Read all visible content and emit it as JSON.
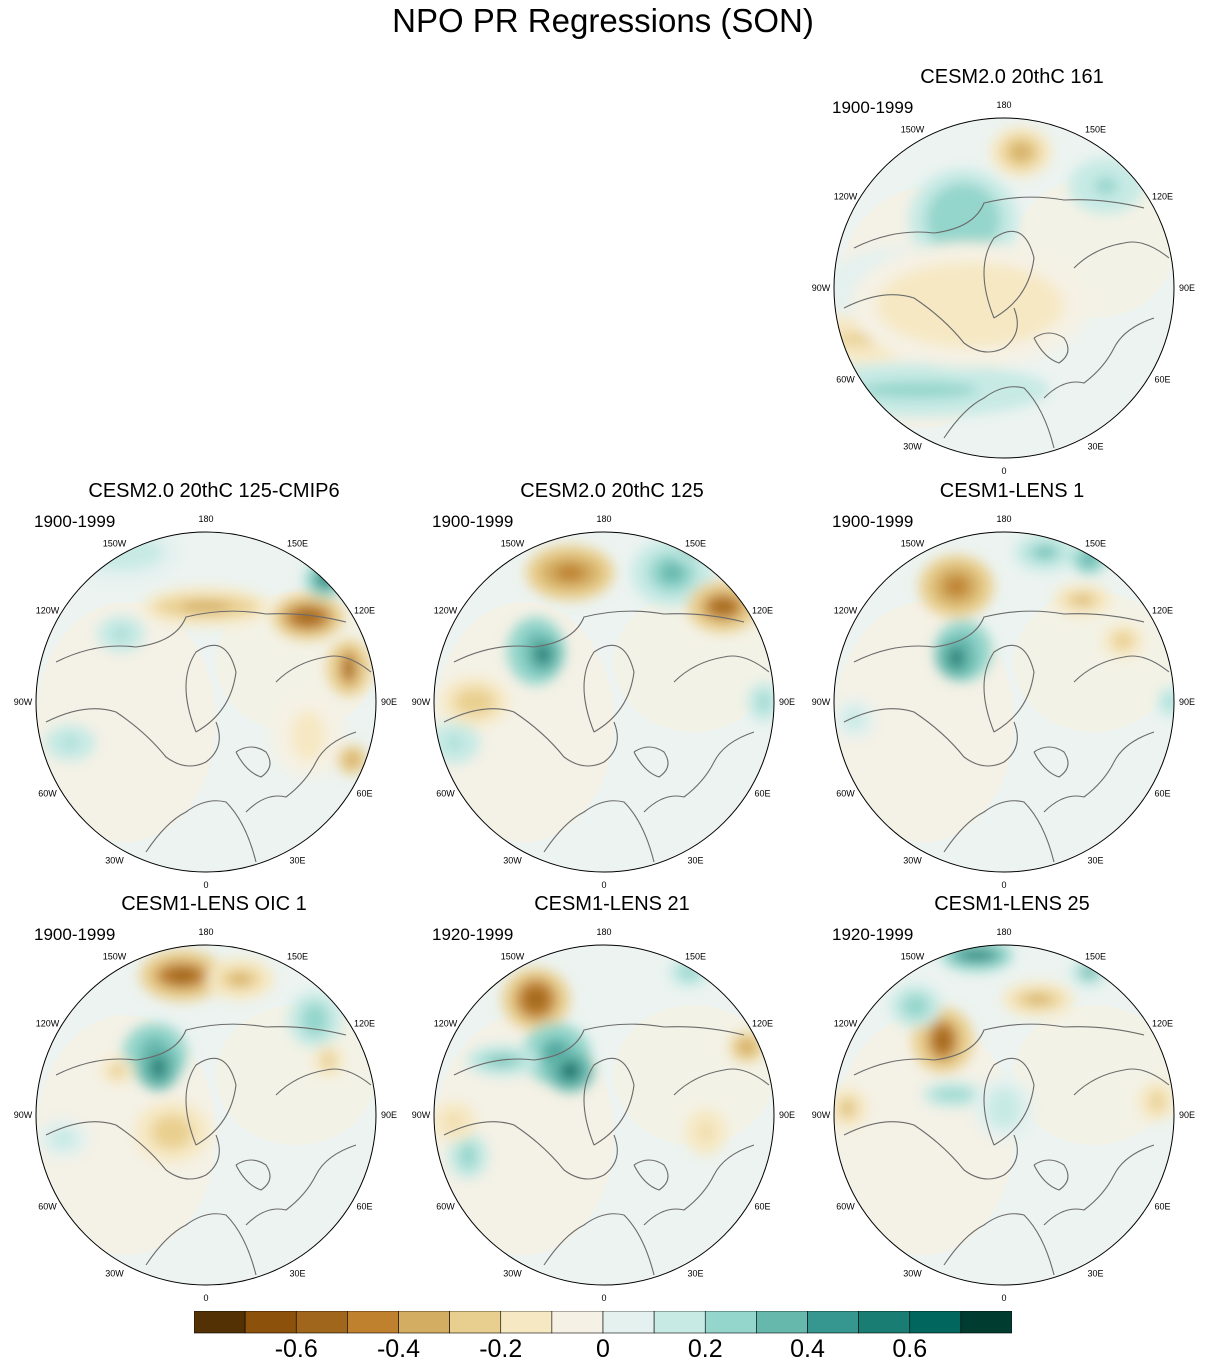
{
  "title": "NPO PR Regressions (SON)",
  "longitude_labels": [
    "180",
    "150E",
    "120E",
    "90E",
    "60E",
    "30E",
    "0",
    "30W",
    "60W",
    "90W",
    "120W",
    "150W"
  ],
  "panels": [
    {
      "id": "cesm2-161",
      "title": "CESM2.0 20thC 161",
      "period": "1900-1999",
      "row": 0,
      "col": 2,
      "features": [
        [
          -0.3,
          0.02,
          -0.35,
          0.3,
          0.24,
          0.09
        ],
        [
          0.12,
          0.2,
          0.5,
          0.35,
          0.16,
          0.1
        ],
        [
          0.3,
          0.38,
          0.3,
          0.22,
          0.22,
          0.1
        ],
        [
          -0.2,
          0.08,
          0.65,
          0.3,
          0.07,
          0.08
        ],
        [
          0.5,
          0.05,
          0.05,
          0.1,
          0.1,
          0.07
        ],
        [
          -0.3,
          0.55,
          0.1,
          0.12,
          0.1,
          0.06
        ],
        [
          0.25,
          0.25,
          0.8,
          0.7,
          0.1,
          0.07
        ],
        [
          0.22,
          0.8,
          0.2,
          0.14,
          0.1,
          0.08
        ],
        [
          -0.15,
          0.4,
          0.55,
          0.55,
          0.25,
          0.15
        ]
      ]
    },
    {
      "id": "cesm2-125-cmip6",
      "title": "CESM2.0 20thC 125-CMIP6",
      "period": "1900-1999",
      "row": 1,
      "col": 0,
      "features": [
        [
          0.2,
          0.25,
          0.06,
          0.25,
          0.1,
          0.1
        ],
        [
          -0.35,
          0.5,
          0.22,
          0.3,
          0.06,
          0.07
        ],
        [
          -0.55,
          0.8,
          0.25,
          0.14,
          0.08,
          0.07
        ],
        [
          -0.55,
          0.92,
          0.4,
          0.05,
          0.1,
          0.08
        ],
        [
          0.6,
          0.85,
          0.14,
          0.06,
          0.06,
          0.06
        ],
        [
          0.25,
          0.25,
          0.3,
          0.08,
          0.06,
          0.06
        ],
        [
          0.22,
          0.1,
          0.62,
          0.08,
          0.05,
          0.07
        ],
        [
          -0.18,
          0.8,
          0.6,
          0.1,
          0.15,
          0.12
        ],
        [
          -0.4,
          0.93,
          0.67,
          0.03,
          0.04,
          0.06
        ]
      ]
    },
    {
      "id": "cesm2-125",
      "title": "CESM2.0 20thC 125",
      "period": "1900-1999",
      "row": 1,
      "col": 1,
      "features": [
        [
          -0.45,
          0.4,
          0.12,
          0.18,
          0.1,
          0.08
        ],
        [
          0.5,
          0.3,
          0.35,
          0.07,
          0.12,
          0.1
        ],
        [
          0.65,
          0.32,
          0.36,
          0.04,
          0.06,
          0.07
        ],
        [
          0.35,
          0.7,
          0.12,
          0.14,
          0.12,
          0.1
        ],
        [
          0.4,
          0.76,
          0.04,
          0.06,
          0.05,
          0.06
        ],
        [
          -0.55,
          0.85,
          0.22,
          0.12,
          0.08,
          0.09
        ],
        [
          0.3,
          0.97,
          0.5,
          0.03,
          0.06,
          0.07
        ],
        [
          0.25,
          0.06,
          0.62,
          0.07,
          0.06,
          0.08
        ],
        [
          -0.25,
          0.12,
          0.5,
          0.12,
          0.08,
          0.08
        ]
      ]
    },
    {
      "id": "cesm1-lens-1",
      "title": "CESM1-LENS 1",
      "period": "1900-1999",
      "row": 1,
      "col": 2,
      "features": [
        [
          -0.45,
          0.36,
          0.16,
          0.14,
          0.12,
          0.08
        ],
        [
          0.45,
          0.38,
          0.35,
          0.07,
          0.1,
          0.1
        ],
        [
          0.7,
          0.36,
          0.37,
          0.04,
          0.06,
          0.08
        ],
        [
          0.35,
          0.62,
          0.06,
          0.1,
          0.05,
          0.08
        ],
        [
          0.5,
          0.75,
          0.08,
          0.04,
          0.04,
          0.06
        ],
        [
          -0.3,
          0.73,
          0.2,
          0.1,
          0.04,
          0.07
        ],
        [
          -0.25,
          0.85,
          0.32,
          0.06,
          0.05,
          0.06
        ],
        [
          0.2,
          0.06,
          0.55,
          0.06,
          0.06,
          0.07
        ],
        [
          0.3,
          0.99,
          0.5,
          0.02,
          0.04,
          0.06
        ]
      ]
    },
    {
      "id": "cesm1-lens-oic-1",
      "title": "CESM1-LENS OIC 1",
      "period": "1900-1999",
      "row": 2,
      "col": 0,
      "features": [
        [
          -0.55,
          0.43,
          0.09,
          0.16,
          0.08,
          0.09
        ],
        [
          -0.3,
          0.6,
          0.1,
          0.12,
          0.06,
          0.08
        ],
        [
          0.45,
          0.35,
          0.32,
          0.09,
          0.1,
          0.1
        ],
        [
          0.7,
          0.36,
          0.36,
          0.04,
          0.07,
          0.08
        ],
        [
          0.3,
          0.82,
          0.22,
          0.08,
          0.1,
          0.08
        ],
        [
          -0.35,
          0.24,
          0.37,
          0.04,
          0.03,
          0.06
        ],
        [
          -0.3,
          0.86,
          0.34,
          0.03,
          0.05,
          0.06
        ],
        [
          0.2,
          0.08,
          0.57,
          0.08,
          0.06,
          0.07
        ],
        [
          -0.25,
          0.4,
          0.55,
          0.12,
          0.1,
          0.1
        ]
      ]
    },
    {
      "id": "cesm1-lens-21",
      "title": "CESM1-LENS 21",
      "period": "1920-1999",
      "row": 2,
      "col": 1,
      "features": [
        [
          -0.55,
          0.3,
          0.16,
          0.12,
          0.12,
          0.08
        ],
        [
          0.5,
          0.36,
          0.32,
          0.1,
          0.1,
          0.1
        ],
        [
          0.65,
          0.4,
          0.37,
          0.06,
          0.06,
          0.08
        ],
        [
          0.35,
          0.2,
          0.34,
          0.14,
          0.04,
          0.07
        ],
        [
          0.3,
          0.75,
          0.08,
          0.06,
          0.04,
          0.06
        ],
        [
          -0.4,
          0.92,
          0.3,
          0.04,
          0.04,
          0.06
        ],
        [
          0.3,
          0.1,
          0.62,
          0.05,
          0.08,
          0.07
        ],
        [
          -0.2,
          0.06,
          0.52,
          0.06,
          0.06,
          0.07
        ],
        [
          -0.2,
          0.8,
          0.55,
          0.05,
          0.08,
          0.07
        ]
      ]
    },
    {
      "id": "cesm1-lens-25",
      "title": "CESM1-LENS 25",
      "period": "1920-1999",
      "row": 2,
      "col": 2,
      "features": [
        [
          0.55,
          0.42,
          0.03,
          0.14,
          0.04,
          0.07
        ],
        [
          -0.5,
          0.32,
          0.28,
          0.09,
          0.12,
          0.09
        ],
        [
          0.3,
          0.24,
          0.18,
          0.08,
          0.07,
          0.07
        ],
        [
          -0.35,
          0.6,
          0.16,
          0.14,
          0.05,
          0.07
        ],
        [
          0.4,
          0.75,
          0.08,
          0.05,
          0.04,
          0.06
        ],
        [
          0.3,
          0.35,
          0.44,
          0.12,
          0.03,
          0.06
        ],
        [
          -0.35,
          0.04,
          0.48,
          0.05,
          0.06,
          0.07
        ],
        [
          -0.25,
          0.95,
          0.46,
          0.04,
          0.06,
          0.07
        ],
        [
          0.2,
          0.5,
          0.48,
          0.1,
          0.12,
          0.08
        ]
      ]
    }
  ],
  "colorbar": {
    "colors": [
      "#543005",
      "#8c510a",
      "#a0661c",
      "#bf812d",
      "#d3ad62",
      "#e9cf8f",
      "#f6e8c3",
      "#f5f1e4",
      "#e4f1ef",
      "#c7eae5",
      "#94d6cc",
      "#66b8ad",
      "#35978f",
      "#1a7d73",
      "#01665e",
      "#003c30"
    ],
    "levels": [
      -0.7,
      -0.6,
      -0.5,
      -0.4,
      -0.3,
      -0.2,
      -0.1,
      0,
      0.1,
      0.2,
      0.3,
      0.4,
      0.5,
      0.6,
      0.7
    ],
    "tick_labels": [
      "-0.6",
      "-0.4",
      "-0.2",
      "0",
      "0.2",
      "0.4",
      "0.6"
    ],
    "tick_values": [
      -0.6,
      -0.4,
      -0.2,
      0,
      0.2,
      0.4,
      0.6
    ]
  }
}
